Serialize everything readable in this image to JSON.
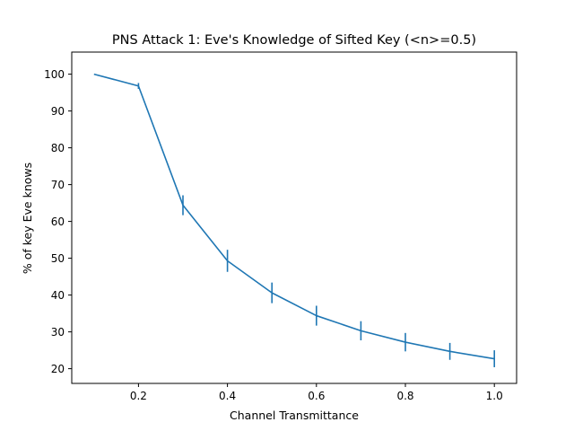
{
  "chart_data": {
    "type": "line",
    "title": "PNS Attack 1: Eve's Knowledge of Sifted Key (<n>=0.5)",
    "xlabel": "Channel Transmittance",
    "ylabel": "% of key Eve knows",
    "xlim": [
      0.05,
      1.05
    ],
    "ylim": [
      16,
      106
    ],
    "x_ticks": [
      0.2,
      0.4,
      0.6,
      0.8,
      1.0
    ],
    "x_tick_labels": [
      "0.2",
      "0.4",
      "0.6",
      "0.8",
      "1.0"
    ],
    "y_ticks": [
      20,
      30,
      40,
      50,
      60,
      70,
      80,
      90,
      100
    ],
    "y_tick_labels": [
      "20",
      "30",
      "40",
      "50",
      "60",
      "70",
      "80",
      "90",
      "100"
    ],
    "grid": false,
    "series": [
      {
        "color": "#1f77b4",
        "x": [
          0.1,
          0.2,
          0.3,
          0.4,
          0.5,
          0.6,
          0.7,
          0.8,
          0.9,
          1.0
        ],
        "y": [
          100.0,
          96.8,
          64.4,
          49.3,
          40.6,
          34.4,
          30.3,
          27.2,
          24.7,
          22.7
        ],
        "yerr": [
          0.0,
          0.8,
          2.7,
          3.0,
          2.8,
          2.7,
          2.6,
          2.5,
          2.3,
          2.3
        ]
      }
    ]
  }
}
